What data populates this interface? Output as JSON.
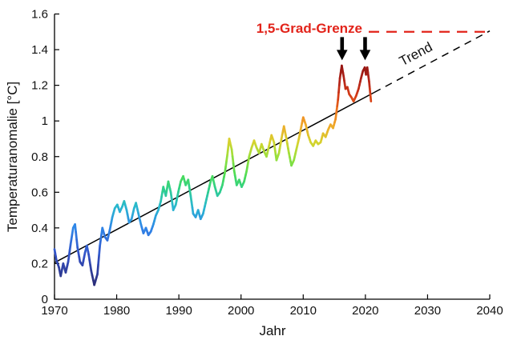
{
  "figure": {
    "background": "#ffffff",
    "axis_color": "#000000"
  },
  "chart_data": {
    "type": "line",
    "title": "",
    "xlabel": "Jahr",
    "ylabel": "Temperaturanomalie [°C]",
    "xlim": [
      1970,
      2040
    ],
    "ylim": [
      0,
      1.6
    ],
    "grid": false,
    "legend": false,
    "xticks": [
      {
        "v": 1970,
        "label": "1970"
      },
      {
        "v": 1980,
        "label": "1980"
      },
      {
        "v": 1990,
        "label": "1990"
      },
      {
        "v": 2000,
        "label": "2000"
      },
      {
        "v": 2010,
        "label": "2010"
      },
      {
        "v": 2020,
        "label": "2020"
      },
      {
        "v": 2030,
        "label": "2030"
      },
      {
        "v": 2040,
        "label": "2040"
      }
    ],
    "yticks": [
      {
        "v": 0,
        "label": "0"
      },
      {
        "v": 0.2,
        "label": "0.2"
      },
      {
        "v": 0.4,
        "label": "0.4"
      },
      {
        "v": 0.6,
        "label": "0.6"
      },
      {
        "v": 0.8,
        "label": "0.8"
      },
      {
        "v": 1,
        "label": "1"
      },
      {
        "v": 1.2,
        "label": "1.2"
      },
      {
        "v": 1.4,
        "label": "1.4"
      },
      {
        "v": 1.6,
        "label": "1.6"
      }
    ],
    "threshold": {
      "label": "1,5-Grad-Grenze",
      "value": 1.5,
      "color": "#e2231a"
    },
    "trend": {
      "label": "Trend",
      "x0": 1970,
      "v0": 0.205,
      "x1": 2040,
      "v1": 1.505,
      "solid_until": 2021.4,
      "color": "#000000"
    },
    "arrows": [
      {
        "x": 2016.25,
        "tip_value": 1.34
      },
      {
        "x": 2019.95,
        "tip_value": 1.34
      }
    ],
    "colormap_stops": [
      [
        0.08,
        "#2a2c75"
      ],
      [
        0.25,
        "#3352c8"
      ],
      [
        0.4,
        "#2f86e8"
      ],
      [
        0.52,
        "#2ab8cf"
      ],
      [
        0.62,
        "#2fd08a"
      ],
      [
        0.7,
        "#4fdd53"
      ],
      [
        0.8,
        "#9ae03c"
      ],
      [
        0.88,
        "#d6d32e"
      ],
      [
        0.98,
        "#f0a82b"
      ],
      [
        1.05,
        "#ee7d1e"
      ],
      [
        1.14,
        "#d63d17"
      ],
      [
        1.22,
        "#b5261a"
      ],
      [
        1.32,
        "#8f1210"
      ]
    ],
    "series": [
      {
        "name": "Temperaturanomalie",
        "color_by": "value",
        "points": [
          [
            1970.0,
            0.28
          ],
          [
            1970.3,
            0.22
          ],
          [
            1970.7,
            0.18
          ],
          [
            1971.0,
            0.13
          ],
          [
            1971.4,
            0.2
          ],
          [
            1971.8,
            0.15
          ],
          [
            1972.2,
            0.21
          ],
          [
            1972.6,
            0.31
          ],
          [
            1973.0,
            0.4
          ],
          [
            1973.3,
            0.42
          ],
          [
            1973.7,
            0.29
          ],
          [
            1974.1,
            0.21
          ],
          [
            1974.5,
            0.19
          ],
          [
            1974.9,
            0.26
          ],
          [
            1975.2,
            0.3
          ],
          [
            1975.5,
            0.25
          ],
          [
            1975.9,
            0.16
          ],
          [
            1976.4,
            0.08
          ],
          [
            1976.9,
            0.14
          ],
          [
            1977.3,
            0.3
          ],
          [
            1977.7,
            0.4
          ],
          [
            1978.1,
            0.35
          ],
          [
            1978.5,
            0.33
          ],
          [
            1978.9,
            0.39
          ],
          [
            1979.3,
            0.46
          ],
          [
            1979.7,
            0.51
          ],
          [
            1980.1,
            0.53
          ],
          [
            1980.5,
            0.49
          ],
          [
            1980.9,
            0.52
          ],
          [
            1981.2,
            0.55
          ],
          [
            1981.6,
            0.5
          ],
          [
            1982.0,
            0.43
          ],
          [
            1982.4,
            0.45
          ],
          [
            1982.8,
            0.51
          ],
          [
            1983.1,
            0.54
          ],
          [
            1983.5,
            0.48
          ],
          [
            1983.9,
            0.42
          ],
          [
            1984.3,
            0.37
          ],
          [
            1984.7,
            0.4
          ],
          [
            1985.1,
            0.36
          ],
          [
            1985.5,
            0.38
          ],
          [
            1985.9,
            0.42
          ],
          [
            1986.3,
            0.47
          ],
          [
            1986.7,
            0.5
          ],
          [
            1987.1,
            0.55
          ],
          [
            1987.5,
            0.63
          ],
          [
            1987.9,
            0.58
          ],
          [
            1988.3,
            0.66
          ],
          [
            1988.7,
            0.6
          ],
          [
            1989.1,
            0.5
          ],
          [
            1989.5,
            0.53
          ],
          [
            1989.9,
            0.6
          ],
          [
            1990.3,
            0.66
          ],
          [
            1990.7,
            0.69
          ],
          [
            1991.1,
            0.64
          ],
          [
            1991.5,
            0.67
          ],
          [
            1991.9,
            0.58
          ],
          [
            1992.3,
            0.48
          ],
          [
            1992.7,
            0.46
          ],
          [
            1993.1,
            0.5
          ],
          [
            1993.5,
            0.45
          ],
          [
            1993.9,
            0.48
          ],
          [
            1994.3,
            0.54
          ],
          [
            1994.7,
            0.6
          ],
          [
            1995.1,
            0.66
          ],
          [
            1995.4,
            0.69
          ],
          [
            1995.8,
            0.63
          ],
          [
            1996.2,
            0.58
          ],
          [
            1996.6,
            0.6
          ],
          [
            1997.0,
            0.64
          ],
          [
            1997.4,
            0.71
          ],
          [
            1997.8,
            0.81
          ],
          [
            1998.1,
            0.9
          ],
          [
            1998.5,
            0.84
          ],
          [
            1998.9,
            0.72
          ],
          [
            1999.3,
            0.64
          ],
          [
            1999.7,
            0.67
          ],
          [
            2000.1,
            0.63
          ],
          [
            2000.5,
            0.66
          ],
          [
            2000.9,
            0.72
          ],
          [
            2001.3,
            0.8
          ],
          [
            2001.7,
            0.85
          ],
          [
            2002.1,
            0.89
          ],
          [
            2002.5,
            0.85
          ],
          [
            2002.9,
            0.82
          ],
          [
            2003.3,
            0.87
          ],
          [
            2003.7,
            0.83
          ],
          [
            2004.1,
            0.8
          ],
          [
            2004.5,
            0.86
          ],
          [
            2004.9,
            0.92
          ],
          [
            2005.3,
            0.88
          ],
          [
            2005.7,
            0.78
          ],
          [
            2006.1,
            0.82
          ],
          [
            2006.5,
            0.9
          ],
          [
            2006.9,
            0.97
          ],
          [
            2007.3,
            0.9
          ],
          [
            2007.7,
            0.82
          ],
          [
            2008.1,
            0.75
          ],
          [
            2008.5,
            0.78
          ],
          [
            2008.9,
            0.84
          ],
          [
            2009.3,
            0.9
          ],
          [
            2009.7,
            0.97
          ],
          [
            2010.0,
            1.02
          ],
          [
            2010.4,
            0.98
          ],
          [
            2010.8,
            0.92
          ],
          [
            2011.2,
            0.88
          ],
          [
            2011.6,
            0.86
          ],
          [
            2012.0,
            0.89
          ],
          [
            2012.4,
            0.87
          ],
          [
            2012.8,
            0.88
          ],
          [
            2013.2,
            0.93
          ],
          [
            2013.6,
            0.91
          ],
          [
            2014.0,
            0.95
          ],
          [
            2014.4,
            0.98
          ],
          [
            2014.8,
            0.96
          ],
          [
            2015.2,
            1.01
          ],
          [
            2015.6,
            1.12
          ],
          [
            2015.9,
            1.24
          ],
          [
            2016.2,
            1.31
          ],
          [
            2016.5,
            1.25
          ],
          [
            2016.8,
            1.18
          ],
          [
            2017.1,
            1.19
          ],
          [
            2017.4,
            1.15
          ],
          [
            2017.8,
            1.13
          ],
          [
            2018.1,
            1.11
          ],
          [
            2018.5,
            1.14
          ],
          [
            2018.9,
            1.18
          ],
          [
            2019.3,
            1.24
          ],
          [
            2019.6,
            1.28
          ],
          [
            2019.9,
            1.3
          ],
          [
            2020.1,
            1.26
          ],
          [
            2020.3,
            1.3
          ],
          [
            2020.6,
            1.22
          ],
          [
            2020.9,
            1.11
          ]
        ]
      }
    ]
  }
}
